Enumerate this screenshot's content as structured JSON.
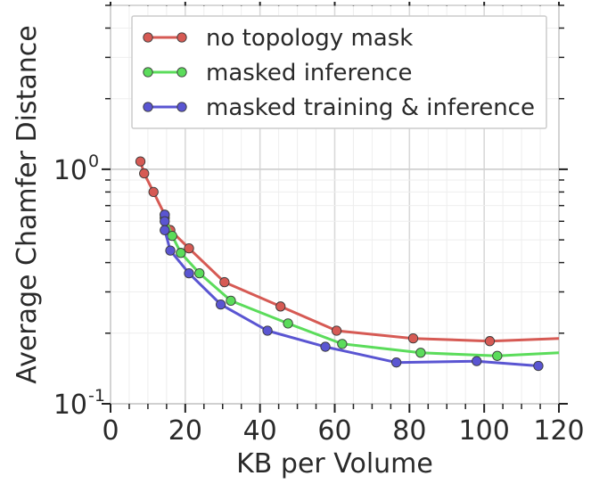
{
  "chart_data": {
    "type": "line",
    "title": "",
    "xlabel": "KB per Volume",
    "ylabel": "Average Chamfer Distance",
    "xlim": [
      0,
      120
    ],
    "ylim": [
      0.1,
      5
    ],
    "yscale": "log",
    "grid": true,
    "legend_position": "top-right",
    "x_ticks": [
      0,
      20,
      40,
      60,
      80,
      100,
      120
    ],
    "x_tick_labels": [
      "0",
      "20",
      "40",
      "60",
      "80",
      "100",
      "120"
    ],
    "y_ticks": [
      0.1,
      1
    ],
    "y_tick_labels": [
      {
        "base": "10",
        "exp": "-1"
      },
      {
        "base": "10",
        "exp": "0"
      }
    ],
    "series": [
      {
        "name": "no topology mask",
        "color": "#d65a54",
        "x": [
          8,
          9,
          11.5,
          14.5,
          16,
          21,
          30.5,
          45.5,
          60.5,
          81,
          101.5,
          120
        ],
        "y": [
          1.08,
          0.96,
          0.8,
          0.64,
          0.55,
          0.46,
          0.33,
          0.26,
          0.205,
          0.19,
          0.185,
          0.19
        ]
      },
      {
        "name": "masked inference",
        "color": "#5bdc5b",
        "x": [
          14.5,
          16.5,
          18.8,
          23.8,
          32.2,
          47.5,
          62,
          83,
          103.5,
          120
        ],
        "y": [
          0.62,
          0.52,
          0.44,
          0.36,
          0.275,
          0.22,
          0.18,
          0.165,
          0.16,
          0.165
        ]
      },
      {
        "name": "masked training & inference",
        "color": "#5a55d2",
        "x": [
          14.5,
          14.5,
          14.5,
          16,
          21,
          29.5,
          42,
          57.5,
          76.5,
          98,
          114.5
        ],
        "y": [
          0.64,
          0.6,
          0.55,
          0.45,
          0.36,
          0.265,
          0.205,
          0.175,
          0.15,
          0.152,
          0.145
        ]
      }
    ]
  }
}
